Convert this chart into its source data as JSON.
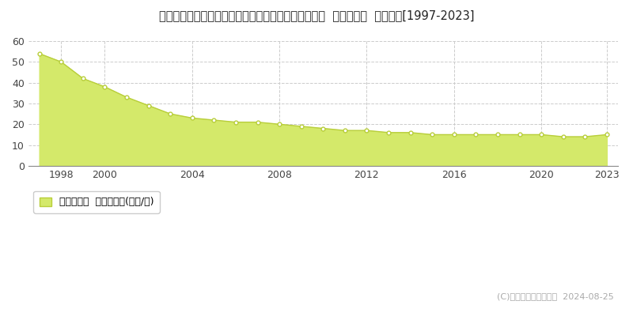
{
  "title": "埼玉県比企郡小川町大字大塚字春日井戸２４１番２外  基準地価格  地価推移[1997-2023]",
  "years": [
    1997,
    1998,
    1999,
    2000,
    2001,
    2002,
    2003,
    2004,
    2005,
    2006,
    2007,
    2008,
    2009,
    2010,
    2011,
    2012,
    2013,
    2014,
    2015,
    2016,
    2017,
    2018,
    2019,
    2020,
    2021,
    2022,
    2023
  ],
  "values": [
    54,
    50,
    42,
    38,
    33,
    29,
    25,
    23,
    22,
    21,
    21,
    20,
    19,
    18,
    17,
    17,
    16,
    16,
    15,
    15,
    15,
    15,
    15,
    15,
    14,
    14,
    15
  ],
  "fill_color": "#d4e96a",
  "line_color": "#b8ce3a",
  "marker_color": "#ffffff",
  "marker_edge_color": "#b8ce3a",
  "background_color": "#ffffff",
  "grid_color": "#cccccc",
  "ylim": [
    0,
    60
  ],
  "yticks": [
    0,
    10,
    20,
    30,
    40,
    50,
    60
  ],
  "xtick_years": [
    1998,
    2000,
    2004,
    2008,
    2012,
    2016,
    2020,
    2023
  ],
  "legend_label": "基準地価格  平均坪単価(万円/坪)",
  "copyright_text": "(C)土地価格ドットコム  2024-08-25",
  "title_fontsize": 10.5,
  "tick_fontsize": 9,
  "legend_fontsize": 9,
  "copyright_fontsize": 8
}
